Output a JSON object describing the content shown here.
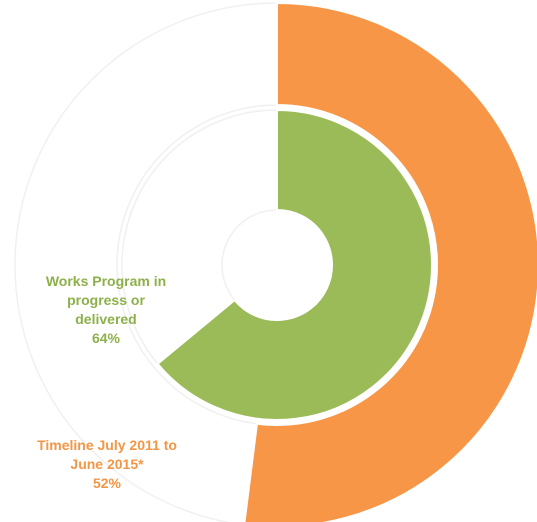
{
  "chart_data": {
    "type": "donut",
    "categories": [
      "Works Program in progress or delivered",
      "Timeline July 2011 to June 2015*"
    ],
    "values": [
      64,
      52
    ],
    "value_labels": [
      "64%",
      "52%"
    ],
    "colors": [
      "#9bbb59",
      "#f79646"
    ]
  }
}
